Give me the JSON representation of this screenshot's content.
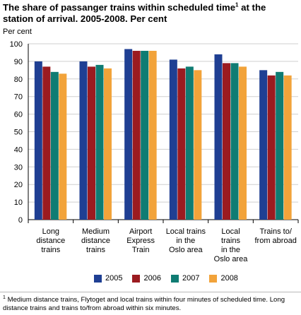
{
  "title_main": "The share of passanger trains within scheduled time",
  "title_sup": "1",
  "title_rest": " at the station of arrival. 2005-2008. Per cent",
  "unit_label": "Per cent",
  "footnote_sup": "1",
  "footnote_text": " Medium distance trains, Flytoget and local trains within four minutes of scheduled time. Long distance trains and trains to/from abroad within six minutes.",
  "colors": {
    "2005": "#1f3f93",
    "2006": "#9b1b20",
    "2007": "#0f7c73",
    "2008": "#f2a33a",
    "grid": "#cfcfcf",
    "axis": "#000000"
  },
  "chart_data": {
    "type": "bar",
    "categories": [
      [
        "Long",
        "distance",
        "trains"
      ],
      [
        "Medium",
        "distance",
        "trains"
      ],
      [
        "Airport",
        "Express",
        "Train"
      ],
      [
        "Local trains",
        "in the",
        "Oslo area"
      ],
      [
        "Local",
        "trains",
        "in the",
        "Oslo area"
      ],
      [
        "Trains to/",
        "from abroad"
      ]
    ],
    "series": [
      {
        "name": "2005",
        "values": [
          90,
          90,
          97,
          91,
          94,
          85
        ]
      },
      {
        "name": "2006",
        "values": [
          87,
          87,
          96,
          86,
          89,
          82
        ]
      },
      {
        "name": "2007",
        "values": [
          84,
          88,
          96,
          87,
          89,
          84
        ]
      },
      {
        "name": "2008",
        "values": [
          83,
          86,
          96,
          85,
          87,
          82
        ]
      }
    ],
    "ylim": [
      0,
      100
    ],
    "yticks": [
      "0",
      "10",
      "20",
      "30",
      "40",
      "50",
      "60",
      "70",
      "80",
      "90",
      "100"
    ],
    "ylabel": "Per cent",
    "xlabel": "",
    "grid": true,
    "legend": "bottom"
  }
}
